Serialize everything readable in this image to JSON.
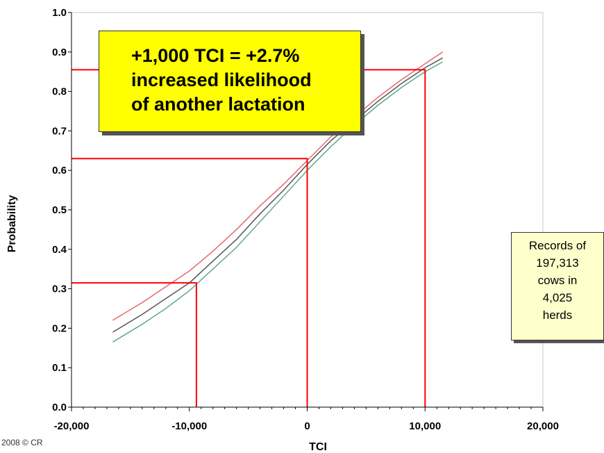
{
  "chart_data": {
    "type": "line",
    "title": "",
    "xlabel": "TCI",
    "ylabel": "Probability",
    "xlim": [
      -20000,
      20000
    ],
    "ylim": [
      0.0,
      1.0
    ],
    "x_ticks": [
      -20000,
      -10000,
      0,
      10000,
      20000
    ],
    "x_tick_labels": [
      "-20,000",
      "-10,000",
      "0",
      "10,000",
      "20,000"
    ],
    "y_ticks": [
      0.0,
      0.1,
      0.2,
      0.3,
      0.4,
      0.5,
      0.6,
      0.7,
      0.8,
      0.9,
      1.0
    ],
    "y_tick_labels": [
      "0.0",
      "0.1",
      "0.2",
      "0.3",
      "0.4",
      "0.5",
      "0.6",
      "0.7",
      "0.8",
      "0.9",
      "1.0"
    ],
    "grid": false,
    "legend": "none",
    "series": [
      {
        "color": "#e8686c",
        "x": [
          -16500,
          -14000,
          -12000,
          -10000,
          -8000,
          -6000,
          -4000,
          -2000,
          0,
          2000,
          4000,
          6000,
          8000,
          10000,
          11500
        ],
        "y": [
          0.22,
          0.265,
          0.305,
          0.345,
          0.395,
          0.45,
          0.51,
          0.565,
          0.625,
          0.685,
          0.735,
          0.785,
          0.83,
          0.87,
          0.9
        ]
      },
      {
        "color": "#555555",
        "x": [
          -16500,
          -14000,
          -12000,
          -10000,
          -8000,
          -6000,
          -4000,
          -2000,
          0,
          2000,
          4000,
          6000,
          8000,
          10000,
          11500
        ],
        "y": [
          0.19,
          0.235,
          0.275,
          0.315,
          0.37,
          0.425,
          0.49,
          0.55,
          0.615,
          0.675,
          0.725,
          0.775,
          0.82,
          0.86,
          0.885
        ]
      },
      {
        "color": "#5fa88c",
        "x": [
          -16500,
          -14000,
          -12000,
          -10000,
          -8000,
          -6000,
          -4000,
          -2000,
          0,
          2000,
          4000,
          6000,
          8000,
          10000,
          11500
        ],
        "y": [
          0.165,
          0.21,
          0.25,
          0.295,
          0.35,
          0.405,
          0.47,
          0.535,
          0.6,
          0.66,
          0.715,
          0.765,
          0.81,
          0.85,
          0.875
        ]
      }
    ],
    "reference_lines": [
      {
        "x": -9400,
        "y": 0.315,
        "color": "#ff0000"
      },
      {
        "x": 0,
        "y": 0.63,
        "color": "#ff0000"
      },
      {
        "x": 10000,
        "y": 0.855,
        "color": "#ff0000"
      }
    ],
    "annotations": {
      "callout_lines": [
        "+1,000 TCI = +2.7%",
        "increased likelihood",
        "of another lactation"
      ],
      "callout_color": "#ffff00",
      "records_lines": [
        "Records of",
        "197,313",
        "cows in",
        "4,025",
        "herds"
      ],
      "records_color": "#ffffcc"
    }
  },
  "copyright": "2008 © CR"
}
